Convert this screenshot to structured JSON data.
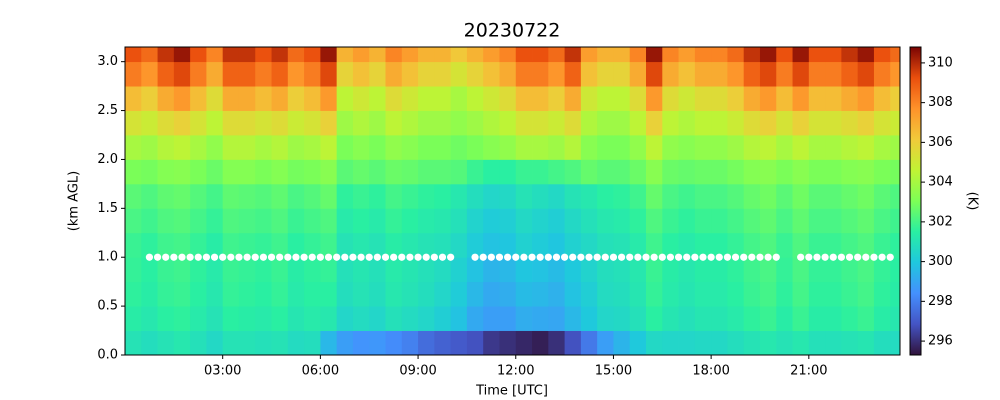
{
  "chart_data": {
    "type": "heatmap",
    "title": "20230722",
    "xlabel": "Time [UTC]",
    "ylabel": "(km AGL)",
    "colorbar_label": "(K)",
    "xlim": [
      0,
      23.8
    ],
    "ylim": [
      0,
      3.15
    ],
    "clim": [
      295.3,
      310.8
    ],
    "xticks": [
      {
        "value": 3,
        "label": "03:00"
      },
      {
        "value": 6,
        "label": "06:00"
      },
      {
        "value": 9,
        "label": "09:00"
      },
      {
        "value": 12,
        "label": "12:00"
      },
      {
        "value": 15,
        "label": "15:00"
      },
      {
        "value": 18,
        "label": "18:00"
      },
      {
        "value": 21,
        "label": "21:00"
      }
    ],
    "yticks": [
      {
        "value": 0,
        "label": "0.0"
      },
      0.5,
      {
        "value": 1,
        "label": "1.0"
      },
      1.5,
      {
        "value": 2,
        "label": "2.0"
      },
      2.5,
      {
        "value": 3,
        "label": "3.0"
      }
    ],
    "cticks": [
      296,
      298,
      300,
      302,
      304,
      306,
      308,
      310
    ],
    "colorscale": [
      "#30123b",
      "#4454c4",
      "#4490fe",
      "#1fc8de",
      "#29efa2",
      "#7dff56",
      "#c1f334",
      "#f1ca3a",
      "#fe922a",
      "#ea4f0d",
      "#7a0403"
    ],
    "xbins": [
      0,
      0.5,
      1,
      1.5,
      2,
      2.5,
      3,
      3.5,
      4,
      4.5,
      5,
      5.5,
      6,
      6.5,
      7,
      7.5,
      8,
      8.5,
      9,
      9.5,
      10,
      10.5,
      11,
      11.5,
      12,
      12.5,
      13,
      13.5,
      14,
      14.5,
      15,
      15.5,
      16,
      16.5,
      17,
      17.5,
      18,
      18.5,
      19,
      19.5,
      20,
      20.5,
      21,
      21.5,
      22,
      22.5,
      23,
      23.5,
      23.8
    ],
    "ybins": [
      0,
      0.25,
      0.5,
      0.75,
      1,
      1.25,
      1.5,
      1.75,
      2,
      2.25,
      2.5,
      2.75,
      3,
      3.15
    ],
    "z": [
      [
        301,
        300.8,
        301,
        301.2,
        300.9,
        300.6,
        301,
        301,
        300.9,
        301,
        300.7,
        300.8,
        299.5,
        298.8,
        298.5,
        298.6,
        298.3,
        298,
        297.5,
        297.2,
        297,
        296.8,
        296.2,
        296,
        295.8,
        295.6,
        296,
        296.8,
        297.8,
        298.8,
        299.4,
        300,
        300.6,
        300.5,
        300.5,
        300.6,
        300.6,
        300.8,
        301,
        301.2,
        301,
        301.2,
        300.9,
        300.9,
        301,
        301.1,
        300.8,
        300.7
      ],
      [
        301.4,
        301.2,
        301.5,
        301.6,
        301.3,
        301,
        301.5,
        301.4,
        301.3,
        301.5,
        301.1,
        301.3,
        301.2,
        300.5,
        300.7,
        300.5,
        300.9,
        300.7,
        300.5,
        300.2,
        299.8,
        299.1,
        298.8,
        298.8,
        299.2,
        299.1,
        299,
        299.5,
        300,
        300.5,
        300.6,
        300.9,
        301.5,
        301.1,
        300.9,
        301.1,
        301.1,
        301.3,
        301.6,
        301.8,
        301.4,
        301.8,
        301.4,
        301.4,
        301.6,
        301.8,
        301.4,
        301.2
      ],
      [
        301.6,
        301.4,
        301.7,
        301.8,
        301.5,
        301.2,
        301.7,
        301.6,
        301.5,
        301.7,
        301.3,
        301.5,
        301.5,
        300.8,
        301,
        300.8,
        301.2,
        301,
        300.8,
        300.5,
        300.1,
        299.5,
        299.1,
        299.2,
        299.6,
        299.5,
        299.3,
        299.8,
        300.2,
        300.7,
        300.8,
        301.1,
        301.7,
        301.3,
        301.1,
        301.3,
        301.3,
        301.5,
        301.8,
        302,
        301.6,
        302,
        301.6,
        301.6,
        301.8,
        302,
        301.6,
        301.4
      ],
      [
        301.7,
        301.5,
        301.8,
        301.9,
        301.6,
        301.3,
        301.8,
        301.7,
        301.6,
        301.8,
        301.4,
        301.6,
        301.7,
        300.9,
        301.1,
        300.9,
        301.3,
        301.1,
        300.9,
        300.7,
        300.3,
        299.8,
        299.4,
        299.5,
        299.9,
        299.8,
        299.6,
        300,
        300.4,
        300.8,
        300.9,
        301.2,
        301.8,
        301.4,
        301.2,
        301.4,
        301.4,
        301.6,
        301.9,
        302.1,
        301.7,
        302.1,
        301.7,
        301.7,
        301.9,
        302.1,
        301.7,
        301.5
      ],
      [
        301.8,
        301.6,
        301.9,
        302,
        301.7,
        301.4,
        301.9,
        301.8,
        301.7,
        301.9,
        301.5,
        301.7,
        301.9,
        301,
        301.2,
        301,
        301.4,
        301.2,
        301,
        300.9,
        300.6,
        300.1,
        299.8,
        299.9,
        300.3,
        300.1,
        299.9,
        300.3,
        300.6,
        300.9,
        301,
        301.3,
        301.9,
        301.5,
        301.3,
        301.5,
        301.5,
        301.7,
        302,
        302.2,
        301.8,
        302.2,
        301.8,
        301.8,
        302,
        302.2,
        301.8,
        301.6
      ],
      [
        302.1,
        301.9,
        302.2,
        302.3,
        302,
        301.7,
        302.2,
        302.1,
        302,
        302.2,
        301.8,
        302,
        302.2,
        301.3,
        301.5,
        301.3,
        301.7,
        301.5,
        301.3,
        301.2,
        300.9,
        300.4,
        300.1,
        300.2,
        300.6,
        300.4,
        300.2,
        300.6,
        300.9,
        301.2,
        301.3,
        301.6,
        302.2,
        301.8,
        301.6,
        301.8,
        301.8,
        302,
        302.3,
        302.5,
        302.1,
        302.5,
        302.1,
        302.1,
        302.3,
        302.5,
        302.1,
        301.9
      ],
      [
        302.4,
        302.2,
        302.5,
        302.6,
        302.3,
        302,
        302.5,
        302.4,
        302.3,
        302.5,
        302.1,
        302.3,
        302.6,
        301.6,
        301.8,
        301.6,
        302,
        301.8,
        301.6,
        301.5,
        301.2,
        300.8,
        300.5,
        300.6,
        301,
        300.8,
        300.6,
        301,
        301.2,
        301.5,
        301.6,
        301.9,
        302.6,
        302.1,
        301.9,
        302.1,
        302.1,
        302.3,
        302.6,
        302.8,
        302.4,
        302.8,
        302.4,
        302.4,
        302.6,
        302.8,
        302.4,
        302.2
      ],
      [
        303,
        302.9,
        303.2,
        303.3,
        303,
        302.7,
        303.2,
        303.2,
        303,
        303.2,
        302.9,
        303,
        303.3,
        302.4,
        302.6,
        302.4,
        302.7,
        302.6,
        302.4,
        302.4,
        302.3,
        301.8,
        301.5,
        301.5,
        301.8,
        301.8,
        302,
        302.2,
        302.6,
        302.4,
        302.4,
        302.7,
        303.3,
        302.7,
        302.6,
        302.7,
        302.7,
        302.9,
        303.2,
        303.3,
        303,
        303.3,
        303,
        303,
        303.2,
        303.3,
        303,
        302.9
      ],
      [
        304,
        303.8,
        304.3,
        304.5,
        304,
        303.5,
        304.3,
        304.3,
        304,
        304.3,
        303.8,
        304,
        304.5,
        303,
        303.3,
        303,
        303.5,
        303.3,
        303,
        303,
        302.8,
        303,
        303.3,
        303.5,
        304,
        304,
        303.8,
        304.3,
        303.3,
        303,
        303,
        303.5,
        304.5,
        303.5,
        303.3,
        303.5,
        303.5,
        303.8,
        304.3,
        304.5,
        304,
        304.5,
        304,
        304,
        304.3,
        304.5,
        304,
        303.8
      ],
      [
        305.2,
        304.9,
        305.5,
        305.9,
        305.2,
        304.5,
        305.5,
        305.5,
        305.2,
        305.5,
        304.9,
        305.2,
        305.9,
        303.8,
        304.2,
        303.8,
        304.5,
        304.2,
        303.8,
        303.8,
        303.5,
        303.8,
        304.2,
        304.5,
        305.2,
        305.2,
        304.9,
        305.5,
        304.2,
        303.8,
        303.8,
        304.5,
        305.9,
        304.5,
        304.2,
        304.5,
        304.5,
        304.9,
        305.5,
        305.9,
        305.2,
        305.9,
        305.2,
        305.2,
        305.5,
        305.9,
        305.2,
        304.9
      ],
      [
        306.5,
        306,
        307,
        307.5,
        306.5,
        305.5,
        307,
        307,
        306.5,
        307,
        306,
        306.5,
        307.5,
        304.5,
        305,
        304.5,
        305.5,
        305,
        304.5,
        304.5,
        304,
        304.5,
        305,
        305.5,
        306.5,
        306.5,
        306,
        307,
        305,
        304.5,
        304.5,
        305.5,
        307.5,
        305.5,
        305,
        305.5,
        305.5,
        306,
        307,
        307.5,
        306.5,
        307.5,
        306.5,
        306.5,
        307,
        307.5,
        306.5,
        306
      ],
      [
        308.2,
        307.6,
        308.8,
        309.4,
        308.2,
        307,
        308.8,
        308.8,
        308.2,
        308.8,
        307.6,
        308.2,
        309.4,
        305.8,
        306.4,
        305.8,
        307,
        306.4,
        305.8,
        305.8,
        305.2,
        305.8,
        306.4,
        307,
        308.2,
        308.2,
        307.6,
        308.8,
        306.4,
        305.8,
        305.8,
        307,
        309.4,
        307,
        306.4,
        307,
        307,
        307.6,
        308.8,
        309.4,
        308.2,
        309.4,
        308.2,
        308.2,
        308.8,
        309.4,
        308.2,
        307.6
      ],
      [
        309.2,
        308.6,
        309.8,
        310.4,
        309.2,
        308,
        309.8,
        309.8,
        309.2,
        309.8,
        308.6,
        309.2,
        310.4,
        306.8,
        307.4,
        306.8,
        308,
        307.4,
        306.8,
        306.8,
        306.2,
        306.8,
        307.4,
        308,
        309.2,
        309.2,
        308.6,
        309.8,
        307.4,
        306.8,
        306.8,
        308,
        310.4,
        308,
        307.4,
        308,
        308,
        308.6,
        309.8,
        310.4,
        309.2,
        310.4,
        309.2,
        309.2,
        309.8,
        310.4,
        309.2,
        308.6
      ]
    ],
    "markers": {
      "color": "#ffffff",
      "y": 1.0,
      "x": [
        0.75,
        1,
        1.25,
        1.5,
        1.75,
        2,
        2.25,
        2.5,
        2.75,
        3,
        3.25,
        3.5,
        3.75,
        4,
        4.25,
        4.5,
        4.75,
        5,
        5.25,
        5.5,
        5.75,
        6,
        6.25,
        6.5,
        6.75,
        7,
        7.25,
        7.5,
        7.75,
        8,
        8.25,
        8.5,
        8.75,
        9,
        9.25,
        9.5,
        9.75,
        10,
        10.75,
        11,
        11.25,
        11.5,
        11.75,
        12,
        12.25,
        12.5,
        12.75,
        13,
        13.25,
        13.5,
        13.75,
        14,
        14.25,
        14.5,
        14.75,
        15,
        15.25,
        15.5,
        15.75,
        16,
        16.25,
        16.5,
        16.75,
        17,
        17.25,
        17.5,
        17.75,
        18,
        18.25,
        18.5,
        18.75,
        19,
        19.25,
        19.5,
        19.75,
        20,
        20.75,
        21,
        21.25,
        21.5,
        21.75,
        22,
        22.25,
        22.5,
        22.75,
        23,
        23.25,
        23.5
      ]
    }
  }
}
